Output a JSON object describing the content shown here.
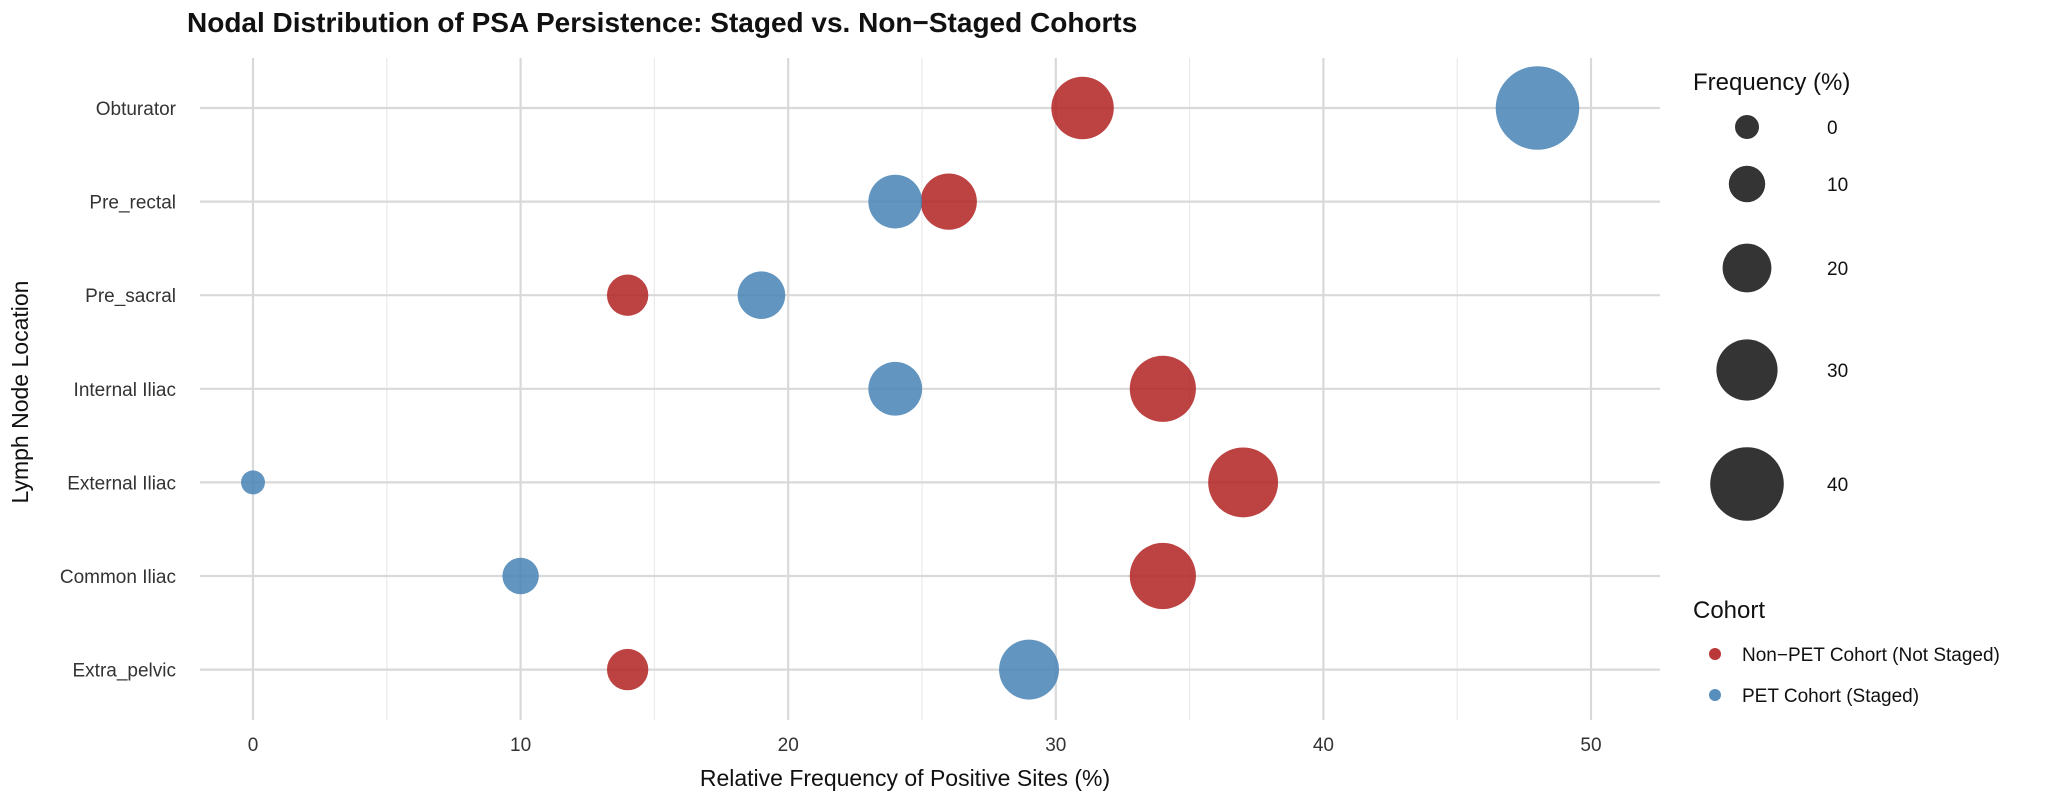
{
  "chart_data": {
    "type": "scatter",
    "title": "Nodal Distribution of PSA Persistence: Staged vs. Non−Staged Cohorts",
    "xlabel": "Relative Frequency of Positive Sites (%)",
    "ylabel": "Lymph Node Location",
    "xlim": [
      -2,
      52.5
    ],
    "x_ticks": [
      "0",
      "10",
      "20",
      "30",
      "40",
      "50"
    ],
    "categories": [
      "Obturator",
      "Pre_rectal",
      "Pre_sacral",
      "Internal Iliac",
      "External Iliac",
      "Common Iliac",
      "Extra_pelvic"
    ],
    "grid": true,
    "series": [
      {
        "name": "Non−PET Cohort (Not Staged)",
        "color": "#b22222",
        "x": [
          31,
          26,
          14,
          34,
          37,
          34,
          14
        ],
        "size": [
          31,
          26,
          14,
          34,
          37,
          34,
          14
        ]
      },
      {
        "name": "PET Cohort (Staged)",
        "color": "#4682b4",
        "x": [
          48,
          24,
          19,
          24,
          0,
          10,
          29
        ],
        "size": [
          48,
          24,
          19,
          24,
          0,
          10,
          29
        ]
      }
    ],
    "size_legend": {
      "title": "Frequency (%)",
      "values": [
        0,
        10,
        20,
        30,
        40
      ],
      "labels": [
        "0",
        "10",
        "20",
        "30",
        "40"
      ],
      "color": "#111111"
    },
    "color_legend": {
      "title": "Cohort",
      "placement": "right"
    }
  }
}
